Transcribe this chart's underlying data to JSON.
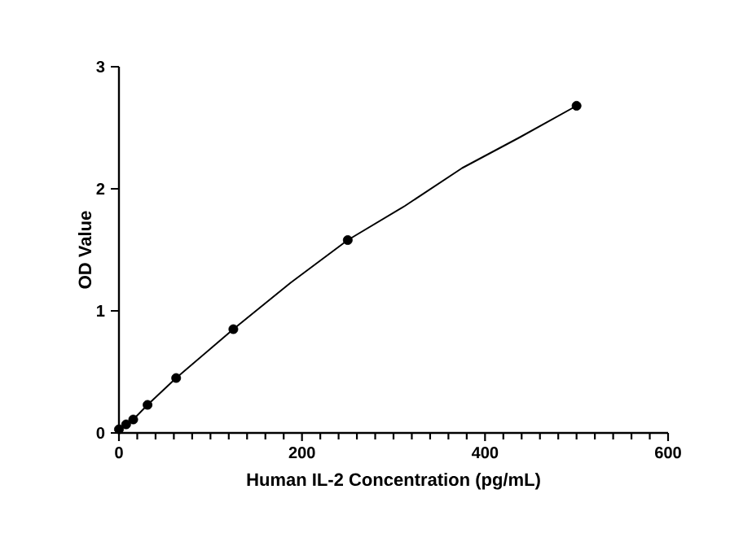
{
  "chart_data": {
    "type": "scatter",
    "xlabel": "Human IL-2 Concentration (pg/mL)",
    "ylabel": "OD Value",
    "xlim": [
      0,
      600
    ],
    "xticks": [
      0,
      200,
      400,
      600
    ],
    "ylim": [
      0,
      3
    ],
    "yticks": [
      0,
      1,
      2,
      3
    ],
    "grid": false,
    "series": [
      {
        "color": "#000000",
        "marker": "circle",
        "x": [
          0,
          7.8,
          15.6,
          31.25,
          62.5,
          125,
          250,
          500
        ],
        "values": [
          0.03,
          0.07,
          0.11,
          0.23,
          0.45,
          0.85,
          1.58,
          2.68
        ]
      },
      {
        "type": "line",
        "color": "#000000",
        "marker": "none",
        "line_style": "solid",
        "x": [
          0,
          7.8,
          15.6,
          31.25,
          62.5,
          100,
          125,
          187.5,
          250,
          312.5,
          375,
          437.5,
          500
        ],
        "values": [
          0.02,
          0.07,
          0.11,
          0.23,
          0.45,
          0.69,
          0.85,
          1.23,
          1.58,
          1.86,
          2.17,
          2.42,
          2.68
        ]
      }
    ]
  }
}
